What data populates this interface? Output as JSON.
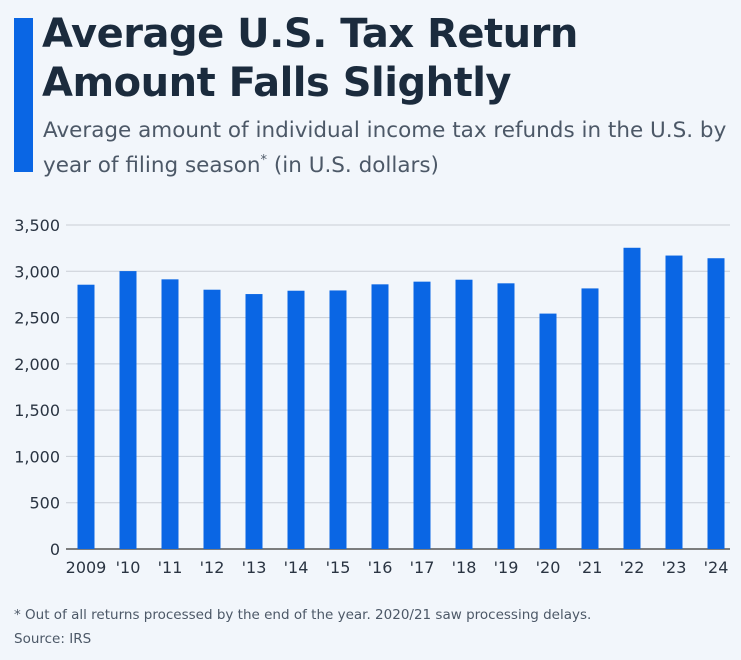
{
  "colors": {
    "accent": "#0a66e4",
    "bar": "#0a66e4",
    "title": "#1b2b3d",
    "background": "#f2f6fb"
  },
  "title": "Average U.S. Tax Return Amount Falls Slightly",
  "subtitle": "Average amount of individual income tax refunds in the U.S. by year of filing season",
  "subtitle_mark": "*",
  "subtitle_unit": " (in U.S. dollars)",
  "footnote": "* Out of all returns processed by the end of the year. 2020/21 saw processing delays.",
  "source": "Source: IRS",
  "chart_data": {
    "type": "bar",
    "categories": [
      "2009",
      "'10",
      "'11",
      "'12",
      "'13",
      "'14",
      "'15",
      "'16",
      "'17",
      "'18",
      "'19",
      "'20",
      "'21",
      "'22",
      "'23",
      "'24"
    ],
    "values": [
      2855,
      3002,
      2913,
      2801,
      2754,
      2790,
      2793,
      2859,
      2888,
      2909,
      2870,
      2543,
      2815,
      3254,
      3170,
      3141
    ],
    "ylim": [
      0,
      3500
    ],
    "yticks": [
      "0",
      "500",
      "1,000",
      "1,500",
      "2,000",
      "2,500",
      "3,000",
      "3,500"
    ],
    "ytick_values": [
      0,
      500,
      1000,
      1500,
      2000,
      2500,
      3000,
      3500
    ],
    "grid": true,
    "xlabel": "",
    "ylabel": ""
  }
}
